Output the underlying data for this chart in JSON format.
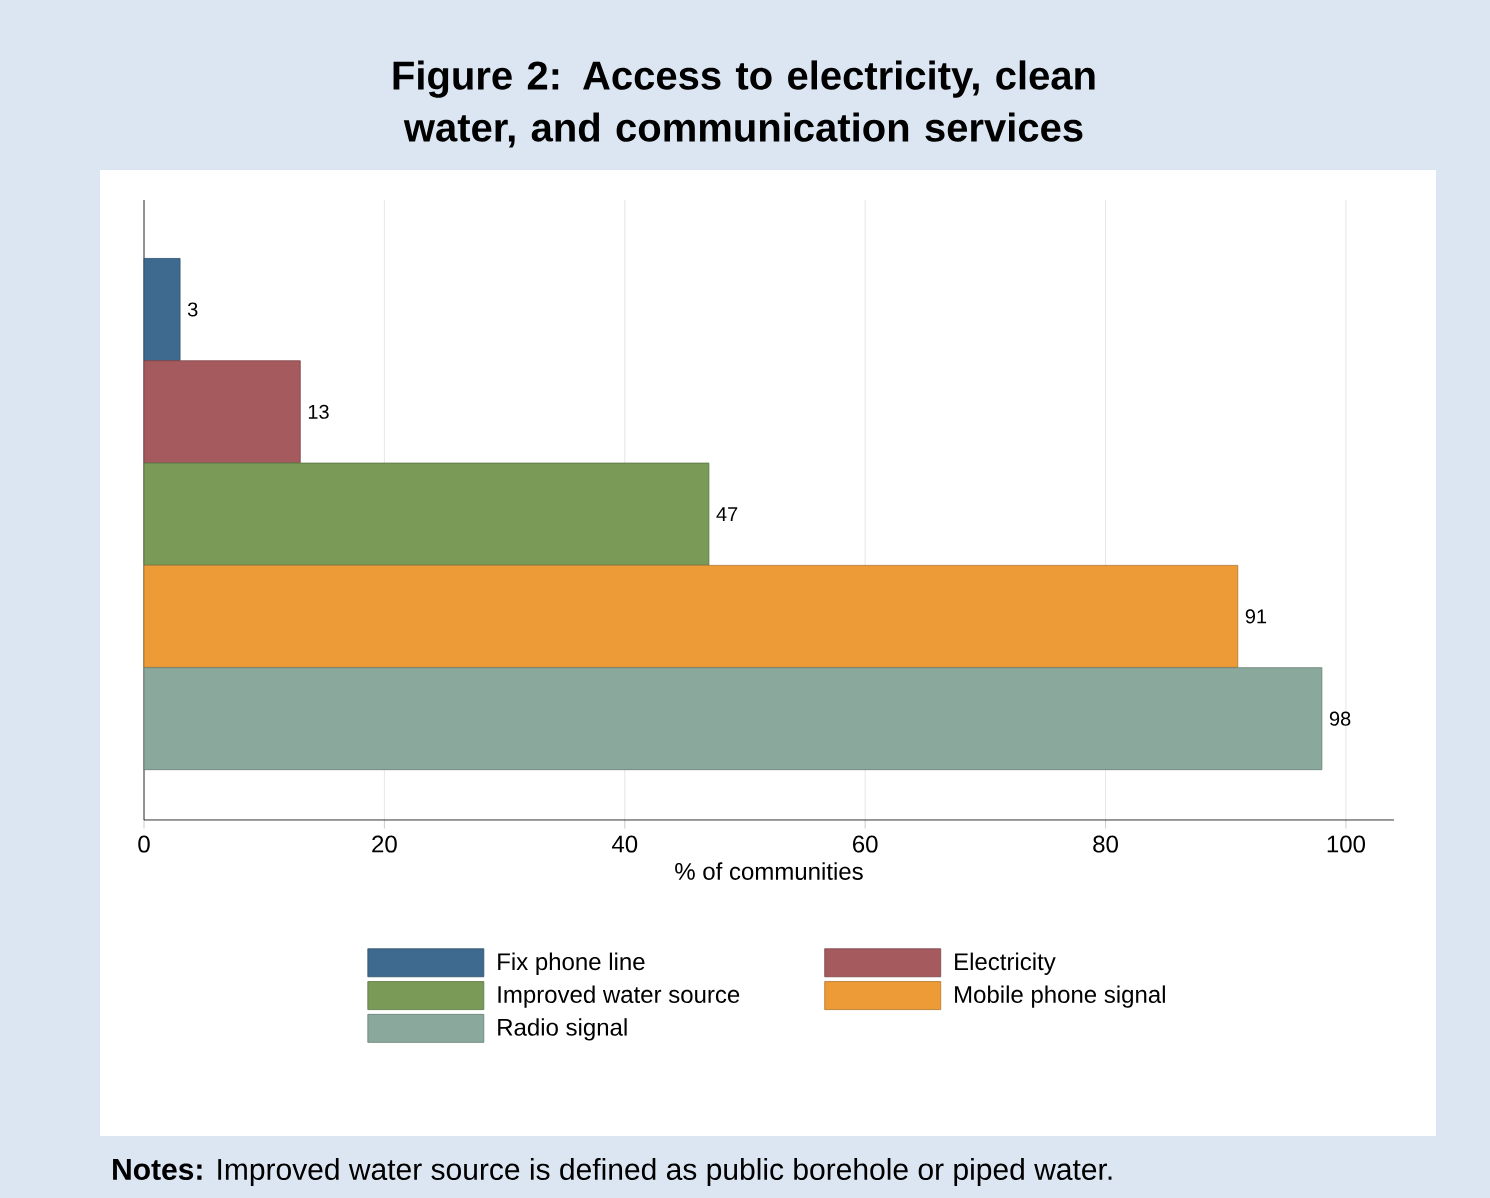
{
  "chart_data": {
    "type": "bar",
    "orientation": "horizontal",
    "title": "Figure 2: Access to electricity, clean water, and communication services",
    "xlabel": "% of communities",
    "categories": [
      null
    ],
    "series": [
      {
        "name": "Fix phone line",
        "color": "#3e6a8f",
        "values": [
          3
        ]
      },
      {
        "name": "Electricity",
        "color": "#a55a5e",
        "values": [
          13
        ]
      },
      {
        "name": "Improved water source",
        "color": "#7a9a57",
        "values": [
          47
        ]
      },
      {
        "name": "Mobile phone signal",
        "color": "#ec9b37",
        "values": [
          91
        ]
      },
      {
        "name": "Radio signal",
        "color": "#8aa89b",
        "values": [
          98
        ]
      }
    ],
    "xlim": [
      0,
      104
    ],
    "xticks": [
      0,
      20,
      40,
      60,
      80,
      100
    ],
    "grid": "x",
    "legend": "bottom",
    "data_labels": true,
    "annotations": [
      "**Notes:** Improved water source is defined as public borehole or piped water."
    ]
  }
}
